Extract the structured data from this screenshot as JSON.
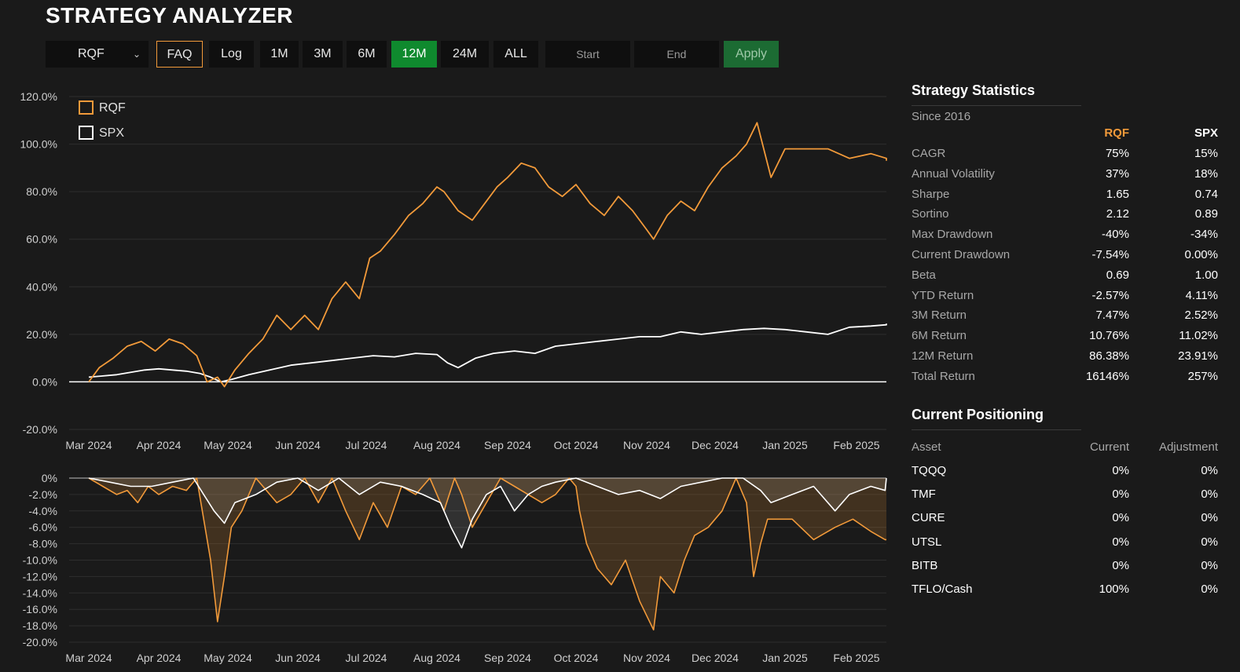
{
  "app": {
    "title": "STRATEGY ANALYZER"
  },
  "toolbar": {
    "selector": "RQF",
    "buttons": [
      "FAQ",
      "Log",
      "1M",
      "3M",
      "6M",
      "12M",
      "24M",
      "ALL"
    ],
    "active": "12M",
    "start_placeholder": "Start",
    "end_placeholder": "End",
    "apply": "Apply"
  },
  "colors": {
    "rqf": "#f29a3a",
    "spx": "#ffffff",
    "active": "#0f8a2e",
    "background": "#1a1a1a"
  },
  "chart_data": [
    {
      "type": "line",
      "title": "",
      "xlabel": "",
      "ylabel": "",
      "x_ticks": [
        "Mar 2024",
        "Apr 2024",
        "May 2024",
        "Jun 2024",
        "Jul 2024",
        "Aug 2024",
        "Sep 2024",
        "Oct 2024",
        "Nov 2024",
        "Dec 2024",
        "Jan 2025",
        "Feb 2025"
      ],
      "y_ticks": [
        "120.0%",
        "100.0%",
        "80.0%",
        "60.0%",
        "40.0%",
        "20.0%",
        "0.0%",
        "-20.0%"
      ],
      "ylim": [
        -20,
        120
      ],
      "legend": {
        "position": "top-left",
        "entries": [
          "RQF",
          "SPX"
        ]
      },
      "grid": true,
      "series": [
        {
          "name": "RQF",
          "x": [
            0,
            0.15,
            0.35,
            0.55,
            0.75,
            0.95,
            1.15,
            1.35,
            1.55,
            1.7,
            1.85,
            1.95,
            2.1,
            2.3,
            2.5,
            2.7,
            2.9,
            3.1,
            3.3,
            3.5,
            3.7,
            3.9,
            4.05,
            4.2,
            4.4,
            4.6,
            4.8,
            5.0,
            5.1,
            5.3,
            5.5,
            5.7,
            5.85,
            6.0,
            6.2,
            6.4,
            6.6,
            6.8,
            7.0,
            7.2,
            7.4,
            7.6,
            7.8,
            8.0,
            8.1,
            8.3,
            8.5,
            8.7,
            8.9,
            9.1,
            9.3,
            9.45,
            9.6,
            9.8,
            10.0,
            10.3,
            10.6,
            10.9,
            11.2,
            11.45,
            11.55
          ],
          "y": [
            0,
            6,
            10,
            15,
            17,
            13,
            18,
            16,
            11,
            0,
            2,
            -2,
            5,
            12,
            18,
            28,
            22,
            28,
            22,
            35,
            42,
            35,
            52,
            55,
            62,
            70,
            75,
            82,
            80,
            72,
            68,
            76,
            82,
            86,
            92,
            90,
            82,
            78,
            83,
            75,
            70,
            78,
            72,
            64,
            60,
            70,
            76,
            72,
            82,
            90,
            95,
            100,
            109,
            86,
            98,
            98,
            98,
            94,
            96,
            94,
            93
          ]
        },
        {
          "name": "SPX",
          "x": [
            0,
            0.2,
            0.4,
            0.6,
            0.8,
            1.0,
            1.2,
            1.4,
            1.6,
            1.75,
            1.9,
            2.05,
            2.3,
            2.6,
            2.9,
            3.2,
            3.5,
            3.8,
            4.1,
            4.4,
            4.7,
            5.0,
            5.15,
            5.3,
            5.55,
            5.8,
            6.1,
            6.4,
            6.7,
            7.0,
            7.3,
            7.6,
            7.9,
            8.2,
            8.5,
            8.8,
            9.1,
            9.4,
            9.7,
            10.0,
            10.3,
            10.6,
            10.9,
            11.2,
            11.45,
            11.55
          ],
          "y": [
            2,
            2.5,
            3,
            4,
            5,
            5.5,
            5,
            4.5,
            3.5,
            2,
            0,
            1,
            3,
            5,
            7,
            8,
            9,
            10,
            11,
            10.5,
            12,
            11.5,
            8,
            6,
            10,
            12,
            13,
            12,
            15,
            16,
            17,
            18,
            19,
            19,
            21,
            20,
            21,
            22,
            22.5,
            22,
            21,
            20,
            23,
            23.5,
            24,
            24.5
          ]
        }
      ]
    },
    {
      "type": "area",
      "title": "",
      "xlabel": "",
      "ylabel": "",
      "x_ticks": [
        "Mar 2024",
        "Apr 2024",
        "May 2024",
        "Jun 2024",
        "Jul 2024",
        "Aug 2024",
        "Sep 2024",
        "Oct 2024",
        "Nov 2024",
        "Dec 2024",
        "Jan 2025",
        "Feb 2025"
      ],
      "y_ticks": [
        "0%",
        "-2.0%",
        "-4.0%",
        "-6.0%",
        "-8.0%",
        "-10.0%",
        "-12.0%",
        "-14.0%",
        "-16.0%",
        "-18.0%",
        "-20.0%"
      ],
      "ylim": [
        -20,
        0
      ],
      "grid": true,
      "series": [
        {
          "name": "RQF",
          "x": [
            0,
            0.2,
            0.4,
            0.55,
            0.7,
            0.85,
            1.0,
            1.2,
            1.4,
            1.55,
            1.65,
            1.75,
            1.85,
            1.95,
            2.05,
            2.2,
            2.4,
            2.7,
            2.9,
            3.1,
            3.3,
            3.5,
            3.7,
            3.9,
            4.1,
            4.3,
            4.5,
            4.7,
            4.9,
            5.1,
            5.25,
            5.35,
            5.5,
            5.7,
            5.9,
            6.1,
            6.3,
            6.5,
            6.7,
            6.9,
            7.0,
            7.05,
            7.15,
            7.3,
            7.5,
            7.7,
            7.9,
            8.1,
            8.2,
            8.4,
            8.55,
            8.7,
            8.9,
            9.1,
            9.3,
            9.45,
            9.55,
            9.65,
            9.75,
            9.85,
            10.1,
            10.4,
            10.7,
            10.95,
            11.2,
            11.4,
            11.55
          ],
          "y": [
            0,
            -1,
            -2,
            -1.5,
            -3,
            -1,
            -2,
            -1,
            -1.5,
            0,
            -5,
            -10,
            -17.5,
            -12,
            -6,
            -4,
            0,
            -3,
            -2,
            0,
            -3,
            0,
            -4,
            -7.5,
            -3,
            -6,
            -1,
            -2,
            0,
            -4,
            0,
            -2,
            -6,
            -3,
            0,
            -1,
            -2,
            -3,
            -2,
            0,
            -1,
            -4,
            -8,
            -11,
            -13,
            -10,
            -15,
            -18.5,
            -12,
            -14,
            -10,
            -7,
            -6,
            -4,
            0,
            -3,
            -12,
            -8,
            -5,
            -5,
            -5,
            -7.5,
            -6,
            -5,
            -6.5,
            -7.5,
            -7.5
          ]
        },
        {
          "name": "SPX",
          "x": [
            0,
            0.3,
            0.6,
            0.9,
            1.2,
            1.5,
            1.65,
            1.8,
            1.95,
            2.1,
            2.4,
            2.7,
            3.0,
            3.3,
            3.6,
            3.9,
            4.2,
            4.5,
            4.8,
            5.05,
            5.2,
            5.35,
            5.5,
            5.7,
            5.9,
            6.1,
            6.3,
            6.5,
            6.7,
            7.0,
            7.3,
            7.6,
            7.9,
            8.2,
            8.5,
            8.8,
            9.1,
            9.4,
            9.65,
            9.8,
            10.1,
            10.4,
            10.7,
            10.9,
            11.2,
            11.4,
            11.55
          ],
          "y": [
            0,
            -0.5,
            -1,
            -1,
            -0.5,
            0,
            -2,
            -4,
            -5.5,
            -3,
            -2,
            -0.5,
            0,
            -1.5,
            0,
            -2,
            -0.5,
            -1,
            -2,
            -3,
            -6,
            -8.5,
            -5,
            -2,
            -1,
            -4,
            -2,
            -1,
            -0.5,
            0,
            -1,
            -2,
            -1.5,
            -2.5,
            -1,
            -0.5,
            0,
            0,
            -1.5,
            -3,
            -2,
            -1,
            -4,
            -2,
            -1,
            -1.5,
            0
          ]
        }
      ]
    }
  ],
  "stats": {
    "title": "Strategy Statistics",
    "since": "Since 2016",
    "columns": [
      "RQF",
      "SPX"
    ],
    "rows": [
      {
        "label": "CAGR",
        "rqf": "75%",
        "spx": "15%"
      },
      {
        "label": "Annual Volatility",
        "rqf": "37%",
        "spx": "18%"
      },
      {
        "label": "Sharpe",
        "rqf": "1.65",
        "spx": "0.74"
      },
      {
        "label": "Sortino",
        "rqf": "2.12",
        "spx": "0.89"
      },
      {
        "label": "Max Drawdown",
        "rqf": "-40%",
        "spx": "-34%"
      },
      {
        "label": "Current Drawdown",
        "rqf": "-7.54%",
        "spx": "0.00%"
      },
      {
        "label": "Beta",
        "rqf": "0.69",
        "spx": "1.00"
      },
      {
        "label": "YTD Return",
        "rqf": "-2.57%",
        "spx": "4.11%"
      },
      {
        "label": "3M Return",
        "rqf": "7.47%",
        "spx": "2.52%"
      },
      {
        "label": "6M Return",
        "rqf": "10.76%",
        "spx": "11.02%"
      },
      {
        "label": "12M Return",
        "rqf": "86.38%",
        "spx": "23.91%"
      },
      {
        "label": "Total Return",
        "rqf": "16146%",
        "spx": "257%"
      }
    ]
  },
  "positioning": {
    "title": "Current Positioning",
    "columns": [
      "Asset",
      "Current",
      "Adjustment"
    ],
    "rows": [
      {
        "asset": "TQQQ",
        "current": "0%",
        "adjustment": "0%"
      },
      {
        "asset": "TMF",
        "current": "0%",
        "adjustment": "0%"
      },
      {
        "asset": "CURE",
        "current": "0%",
        "adjustment": "0%"
      },
      {
        "asset": "UTSL",
        "current": "0%",
        "adjustment": "0%"
      },
      {
        "asset": "BITB",
        "current": "0%",
        "adjustment": "0%"
      },
      {
        "asset": "TFLO/Cash",
        "current": "100%",
        "adjustment": "0%"
      }
    ]
  }
}
